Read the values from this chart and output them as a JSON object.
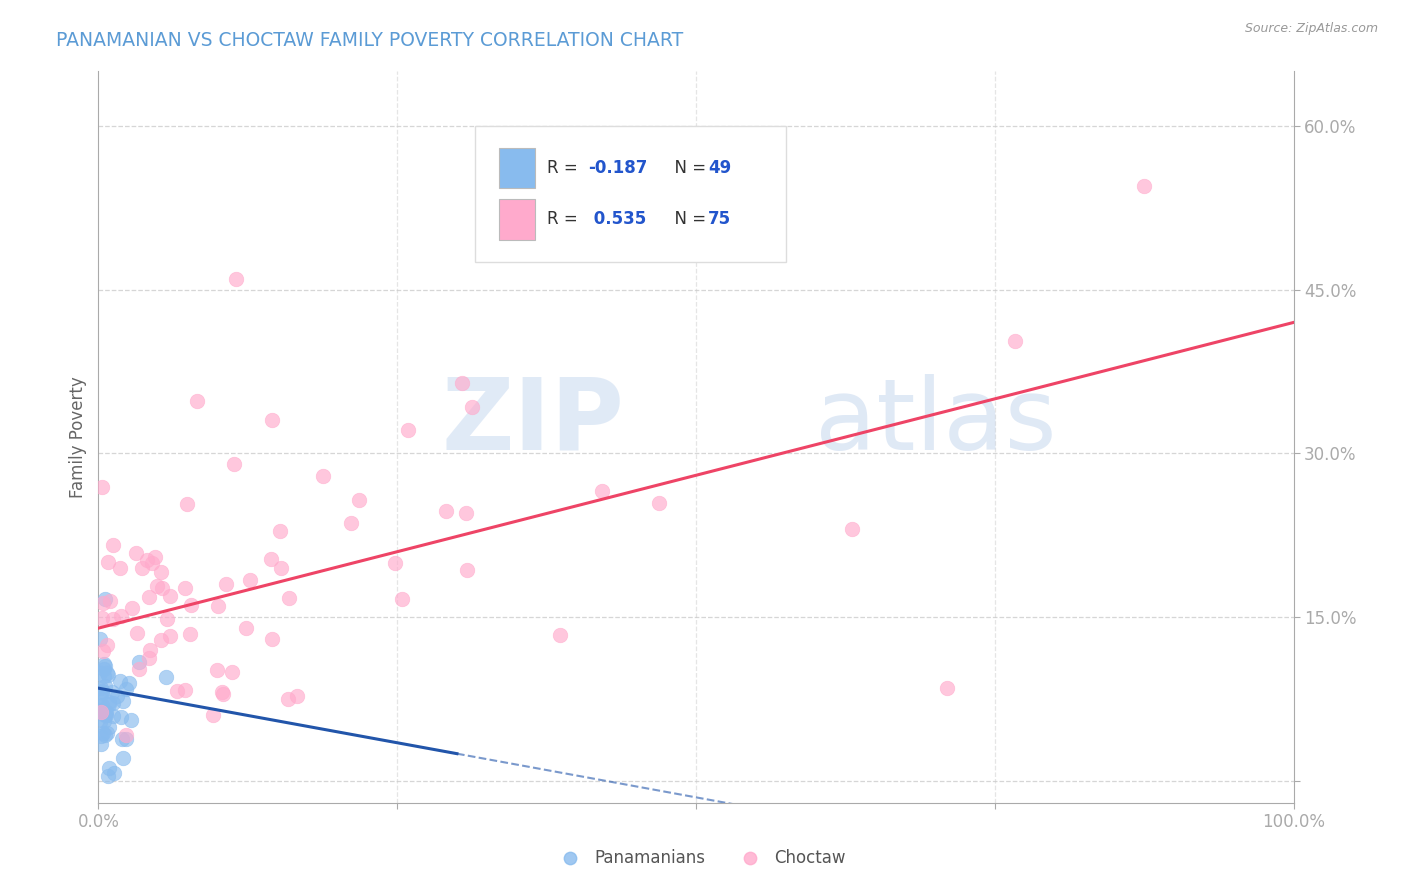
{
  "title": "PANAMANIAN VS CHOCTAW FAMILY POVERTY CORRELATION CHART",
  "source_text": "Source: ZipAtlas.com",
  "ylabel": "Family Poverty",
  "xlim": [
    0,
    1.0
  ],
  "ylim": [
    -0.02,
    0.65
  ],
  "ytick_positions": [
    0.0,
    0.15,
    0.3,
    0.45,
    0.6
  ],
  "ytick_labels": [
    "",
    "15.0%",
    "30.0%",
    "45.0%",
    "60.0%"
  ],
  "xtick_positions": [
    0.0,
    0.25,
    0.5,
    0.75,
    1.0
  ],
  "xtick_labels": [
    "0.0%",
    "",
    "",
    "",
    "100.0%"
  ],
  "label1": "Panamanians",
  "label2": "Choctaw",
  "color1": "#88bbee",
  "color2": "#ffaacc",
  "trend_color1": "#2255aa",
  "trend_color2": "#ee4466",
  "background_color": "#ffffff",
  "grid_color": "#cccccc",
  "title_color": "#5b9bd5",
  "axis_color": "#aaaaaa",
  "tick_color": "#4472c4",
  "legend_r1_text": "R = -0.187   N = 49",
  "legend_r2_text": "R =  0.535   N = 75",
  "watermark_zip": "ZIP",
  "watermark_atlas": "atlas"
}
